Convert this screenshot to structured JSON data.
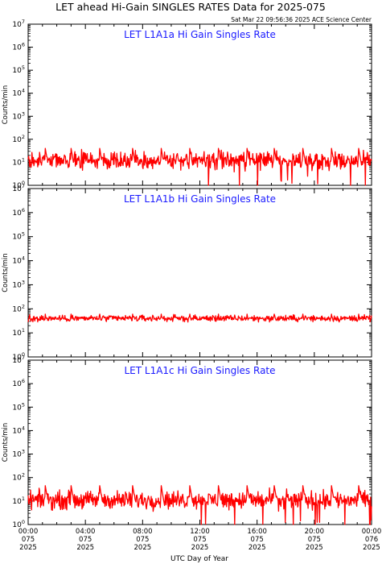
{
  "header": {
    "title": "LET ahead Hi-Gain SINGLES RATES Data for 2025-075",
    "timestamp": "Sat Mar 22 09:56:36 2025 ACE Science Center"
  },
  "colors": {
    "trace": "#ff0000",
    "panel_title": "#1a1aff",
    "axis": "#000000"
  },
  "chart_data": [
    {
      "type": "line",
      "title": "LET L1A1a Hi Gain Singles Rate",
      "ylabel": "Counts/min",
      "yscale": "log",
      "ylim": [
        1,
        10000000
      ],
      "y_tick_labels": [
        "10^0",
        "10^1",
        "10^2",
        "10^3",
        "10^4",
        "10^5",
        "10^6",
        "10^7"
      ],
      "xlim": [
        0,
        24
      ],
      "x_units": "hours UTC, day 075 of 2025",
      "baseline": 12,
      "noise_factor": 1.6,
      "spike_hours": [
        1.2,
        3.0,
        5.0,
        7.3,
        9.3,
        11.3,
        13.3,
        15.3,
        17.2,
        19.2,
        21.2,
        23.1
      ],
      "spike_peak": 40
    },
    {
      "type": "line",
      "title": "LET L1A1b Hi Gain Singles Rate",
      "ylabel": "Counts/min",
      "yscale": "log",
      "ylim": [
        1,
        10000000
      ],
      "y_tick_labels": [
        "10^0",
        "10^1",
        "10^2",
        "10^3",
        "10^4",
        "10^5",
        "10^6",
        "10^7"
      ],
      "xlim": [
        0,
        24
      ],
      "x_units": "hours UTC, day 075 of 2025",
      "baseline": 40,
      "noise_factor": 1.18,
      "spike_hours": [
        1.2,
        3.0,
        5.0,
        7.3,
        9.3,
        11.3,
        13.3,
        15.3,
        17.2,
        19.2,
        21.2,
        23.1
      ],
      "spike_peak": 60
    },
    {
      "type": "line",
      "title": "LET L1A1c Hi Gain Singles Rate",
      "ylabel": "Counts/min",
      "yscale": "log",
      "ylim": [
        1,
        10000000
      ],
      "y_tick_labels": [
        "10^0",
        "10^1",
        "10^2",
        "10^3",
        "10^4",
        "10^5",
        "10^6",
        "10^7"
      ],
      "xlim": [
        0,
        24
      ],
      "x_units": "hours UTC, day 075 of 2025",
      "baseline": 11,
      "noise_factor": 1.6,
      "spike_hours": [
        1.2,
        3.0,
        5.0,
        7.3,
        9.3,
        11.3,
        13.3,
        15.3,
        17.2,
        19.2,
        21.2,
        23.1
      ],
      "spike_peak": 45
    }
  ],
  "x_axis": {
    "label": "UTC Day of Year",
    "ticks": [
      {
        "hour": 0,
        "time": "00:00",
        "day": "075",
        "year": "2025"
      },
      {
        "hour": 4,
        "time": "04:00",
        "day": "075",
        "year": "2025"
      },
      {
        "hour": 8,
        "time": "08:00",
        "day": "075",
        "year": "2025"
      },
      {
        "hour": 12,
        "time": "12:00",
        "day": "075",
        "year": "2025"
      },
      {
        "hour": 16,
        "time": "16:00",
        "day": "075",
        "year": "2025"
      },
      {
        "hour": 20,
        "time": "20:00",
        "day": "075",
        "year": "2025"
      },
      {
        "hour": 24,
        "time": "00:00",
        "day": "076",
        "year": "2025"
      }
    ]
  }
}
